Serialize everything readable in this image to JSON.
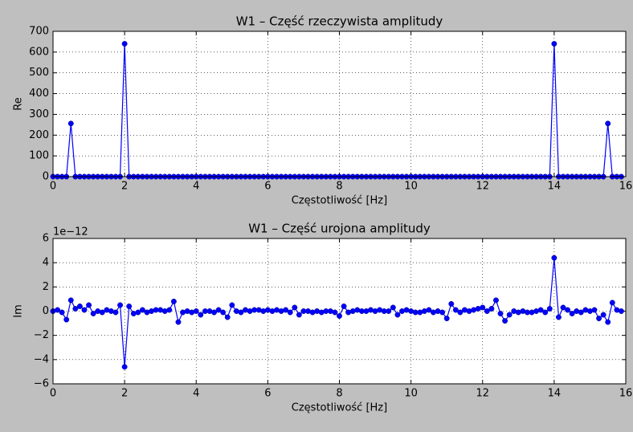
{
  "chart_data": [
    {
      "type": "line",
      "title": "W1 – Część rzeczywista amplitudy",
      "xlabel": "Częstotliwość [Hz]",
      "ylabel": "Re",
      "color": "#0000ff",
      "grid": true,
      "xlim": [
        0,
        16
      ],
      "xticks": [
        0,
        2,
        4,
        6,
        8,
        10,
        12,
        14,
        16
      ],
      "ylim": [
        0,
        700
      ],
      "yticks": [
        0,
        100,
        200,
        300,
        400,
        500,
        600,
        700
      ],
      "x": [
        0,
        0.125,
        0.25,
        0.375,
        0.5,
        0.625,
        0.75,
        0.875,
        1,
        1.125,
        1.25,
        1.375,
        1.5,
        1.625,
        1.75,
        1.875,
        2,
        2.125,
        2.25,
        2.375,
        2.5,
        2.625,
        2.75,
        2.875,
        3,
        3.125,
        3.25,
        3.375,
        3.5,
        3.625,
        3.75,
        3.875,
        4,
        4.125,
        4.25,
        4.375,
        4.5,
        4.625,
        4.75,
        4.875,
        5,
        5.125,
        5.25,
        5.375,
        5.5,
        5.625,
        5.75,
        5.875,
        6,
        6.125,
        6.25,
        6.375,
        6.5,
        6.625,
        6.75,
        6.875,
        7,
        7.125,
        7.25,
        7.375,
        7.5,
        7.625,
        7.75,
        7.875,
        8,
        8.125,
        8.25,
        8.375,
        8.5,
        8.625,
        8.75,
        8.875,
        9,
        9.125,
        9.25,
        9.375,
        9.5,
        9.625,
        9.75,
        9.875,
        10,
        10.125,
        10.25,
        10.375,
        10.5,
        10.625,
        10.75,
        10.875,
        11,
        11.125,
        11.25,
        11.375,
        11.5,
        11.625,
        11.75,
        11.875,
        12,
        12.125,
        12.25,
        12.375,
        12.5,
        12.625,
        12.75,
        12.875,
        13,
        13.125,
        13.25,
        13.375,
        13.5,
        13.625,
        13.75,
        13.875,
        14,
        14.125,
        14.25,
        14.375,
        14.5,
        14.625,
        14.75,
        14.875,
        15,
        15.125,
        15.25,
        15.375,
        15.5,
        15.625,
        15.75,
        15.875
      ],
      "values": [
        0,
        0,
        0,
        0,
        256,
        0,
        0,
        0,
        0,
        0,
        0,
        0,
        0,
        0,
        0,
        0,
        640,
        0,
        0,
        0,
        0,
        0,
        0,
        0,
        0,
        0,
        0,
        0,
        0,
        0,
        0,
        0,
        0,
        0,
        0,
        0,
        0,
        0,
        0,
        0,
        0,
        0,
        0,
        0,
        0,
        0,
        0,
        0,
        0,
        0,
        0,
        0,
        0,
        0,
        0,
        0,
        0,
        0,
        0,
        0,
        0,
        0,
        0,
        0,
        0,
        0,
        0,
        0,
        0,
        0,
        0,
        0,
        0,
        0,
        0,
        0,
        0,
        0,
        0,
        0,
        0,
        0,
        0,
        0,
        0,
        0,
        0,
        0,
        0,
        0,
        0,
        0,
        0,
        0,
        0,
        0,
        0,
        0,
        0,
        0,
        0,
        0,
        0,
        0,
        0,
        0,
        0,
        0,
        0,
        0,
        0,
        0,
        640,
        0,
        0,
        0,
        0,
        0,
        0,
        0,
        0,
        0,
        0,
        0,
        256,
        0,
        0,
        0
      ]
    },
    {
      "type": "line",
      "title": "W1 – Część urojona amplitudy",
      "xlabel": "Częstotliwość [Hz]",
      "ylabel": "Im",
      "y_offset_label": "1e−12",
      "color": "#0000ff",
      "grid": true,
      "xlim": [
        0,
        16
      ],
      "xticks": [
        0,
        2,
        4,
        6,
        8,
        10,
        12,
        14,
        16
      ],
      "ylim": [
        -6,
        6
      ],
      "yticks": [
        {
          "value": -6,
          "label": "−6"
        },
        {
          "value": -4,
          "label": "−4"
        },
        {
          "value": -2,
          "label": "−2"
        },
        0,
        2,
        4,
        6
      ],
      "x": [
        0,
        0.125,
        0.25,
        0.375,
        0.5,
        0.625,
        0.75,
        0.875,
        1,
        1.125,
        1.25,
        1.375,
        1.5,
        1.625,
        1.75,
        1.875,
        2,
        2.125,
        2.25,
        2.375,
        2.5,
        2.625,
        2.75,
        2.875,
        3,
        3.125,
        3.25,
        3.375,
        3.5,
        3.625,
        3.75,
        3.875,
        4,
        4.125,
        4.25,
        4.375,
        4.5,
        4.625,
        4.75,
        4.875,
        5,
        5.125,
        5.25,
        5.375,
        5.5,
        5.625,
        5.75,
        5.875,
        6,
        6.125,
        6.25,
        6.375,
        6.5,
        6.625,
        6.75,
        6.875,
        7,
        7.125,
        7.25,
        7.375,
        7.5,
        7.625,
        7.75,
        7.875,
        8,
        8.125,
        8.25,
        8.375,
        8.5,
        8.625,
        8.75,
        8.875,
        9,
        9.125,
        9.25,
        9.375,
        9.5,
        9.625,
        9.75,
        9.875,
        10,
        10.125,
        10.25,
        10.375,
        10.5,
        10.625,
        10.75,
        10.875,
        11,
        11.125,
        11.25,
        11.375,
        11.5,
        11.625,
        11.75,
        11.875,
        12,
        12.125,
        12.25,
        12.375,
        12.5,
        12.625,
        12.75,
        12.875,
        13,
        13.125,
        13.25,
        13.375,
        13.5,
        13.625,
        13.75,
        13.875,
        14,
        14.125,
        14.25,
        14.375,
        14.5,
        14.625,
        14.75,
        14.875,
        15,
        15.125,
        15.25,
        15.375,
        15.5,
        15.625,
        15.75,
        15.875
      ],
      "values": [
        0,
        0.1,
        -0.1,
        -0.7,
        0.9,
        0.2,
        0.4,
        0.1,
        0.5,
        -0.2,
        0,
        -0.1,
        0.1,
        0,
        -0.1,
        0.5,
        -4.6,
        0.4,
        -0.2,
        -0.1,
        0.1,
        -0.1,
        0,
        0.1,
        0.1,
        0,
        0.1,
        0.8,
        -0.9,
        -0.1,
        0,
        -0.1,
        0,
        -0.3,
        0,
        0,
        -0.1,
        0.1,
        -0.1,
        -0.5,
        0.5,
        0,
        -0.1,
        0.1,
        0,
        0.1,
        0.1,
        0,
        0.1,
        0,
        0.1,
        0,
        0.1,
        -0.1,
        0.3,
        -0.3,
        0,
        0,
        -0.1,
        0,
        -0.1,
        0,
        0,
        -0.1,
        -0.4,
        0.4,
        -0.1,
        0,
        0.1,
        0,
        0,
        0.1,
        0,
        0.1,
        0,
        0,
        0.3,
        -0.3,
        0,
        0.1,
        0,
        -0.1,
        -0.1,
        0,
        0.1,
        -0.1,
        0,
        -0.1,
        -0.6,
        0.6,
        0.1,
        -0.1,
        0.1,
        0,
        0.1,
        0.2,
        0.3,
        0,
        0.2,
        0.9,
        -0.2,
        -0.8,
        -0.3,
        0,
        -0.1,
        0,
        -0.1,
        -0.1,
        0,
        0.1,
        -0.1,
        0.2,
        4.4,
        -0.5,
        0.3,
        0.1,
        -0.2,
        0,
        -0.1,
        0.1,
        0,
        0.1,
        -0.6,
        -0.3,
        -0.9,
        0.7,
        0.1,
        0
      ]
    }
  ]
}
